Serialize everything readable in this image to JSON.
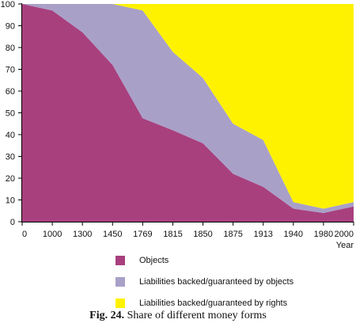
{
  "chart_data": {
    "type": "area",
    "stacked": true,
    "categories": [
      "0",
      "1000",
      "1300",
      "1450",
      "1769",
      "1815",
      "1850",
      "1875",
      "1913",
      "1940",
      "1980",
      "2000"
    ],
    "series": [
      {
        "name": "Objects",
        "color": "#a8407e",
        "values": [
          100,
          97,
          87,
          72,
          47.5,
          42,
          36,
          22,
          16,
          6,
          4,
          7
        ]
      },
      {
        "name": "Liabilities backed/guaranteed by objects",
        "color": "#a9a0c8",
        "values": [
          0,
          3,
          13,
          28,
          49.5,
          36,
          30,
          23,
          21.5,
          3,
          2,
          2
        ]
      },
      {
        "name": "Liabilities backed/guaranteed by rights",
        "color": "#fff200",
        "values": [
          0,
          0,
          0,
          0,
          3,
          22,
          34,
          55,
          62.5,
          91,
          94,
          91
        ]
      }
    ],
    "ylim": [
      0,
      100
    ],
    "yticks": [
      0,
      10,
      20,
      30,
      40,
      50,
      60,
      70,
      80,
      90,
      100
    ],
    "xlabel": "Year",
    "ylabel": "",
    "grid": false,
    "legend_position": "bottom"
  },
  "caption": {
    "label": "Fig. 24.",
    "text": "Share of different money forms"
  }
}
